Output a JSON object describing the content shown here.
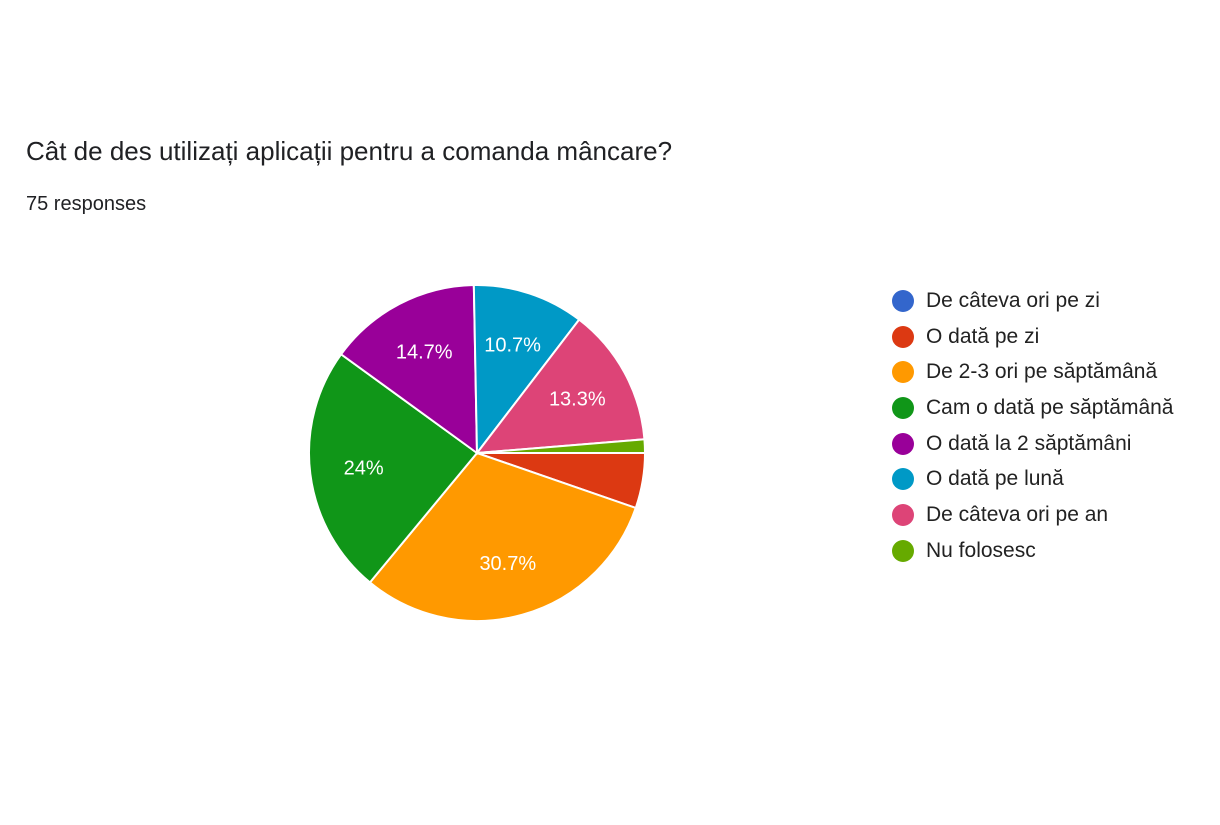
{
  "header": {
    "title": "Cât de des utilizați aplicații pentru a comanda mâncare?",
    "responses": "75 responses"
  },
  "chart_data": {
    "type": "pie",
    "total_responses": 75,
    "categories": [
      "De câteva ori pe zi",
      "O dată pe zi",
      "De 2-3 ori pe săptămână",
      "Cam o dată pe săptămână",
      "O dată la 2 săptămâni",
      "O dată pe lună",
      "De câteva ori pe an",
      "Nu folosesc"
    ],
    "values": [
      0,
      5.3,
      30.7,
      24,
      14.7,
      10.7,
      13.3,
      1.3
    ],
    "data_labels": [
      "",
      "",
      "30.7%",
      "24%",
      "14.7%",
      "10.7%",
      "13.3%",
      ""
    ],
    "colors": [
      "#3366cc",
      "#dc3912",
      "#ff9900",
      "#109618",
      "#990099",
      "#0099c6",
      "#dd4477",
      "#66aa00"
    ],
    "legend_position": "right"
  }
}
